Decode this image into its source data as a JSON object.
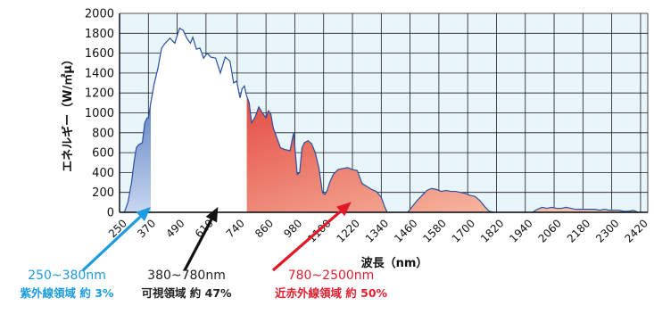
{
  "chart_data": {
    "type": "area",
    "xlabel": "波長（nm）",
    "ylabel": "エネルギー（W/㎡μ）",
    "xlim": [
      250,
      2450
    ],
    "ylim": [
      0,
      2000
    ],
    "x_ticks": [
      250,
      370,
      490,
      610,
      740,
      860,
      980,
      1100,
      1220,
      1340,
      1460,
      1580,
      1700,
      1820,
      1940,
      2060,
      2180,
      2300,
      2420
    ],
    "x_tick_labels": [
      "250",
      "370",
      "490",
      "610",
      "740",
      "860",
      "980",
      "1100",
      "1220",
      "1340",
      "1460",
      "1580",
      "1700",
      "1820",
      "1940",
      "2060",
      "2180",
      "2300",
      "2420"
    ],
    "y_ticks": [
      0,
      200,
      400,
      600,
      800,
      1000,
      1200,
      1400,
      1600,
      1800,
      2000
    ],
    "y_tick_labels": [
      "0",
      "200",
      "400",
      "600",
      "800",
      "1000",
      "1200",
      "1400",
      "1600",
      "1800",
      "2000"
    ],
    "grid": true,
    "series": [
      {
        "x": [
          250,
          270,
          285,
          300,
          310,
          320,
          330,
          345,
          355,
          365,
          370,
          380,
          395,
          410,
          425,
          440,
          460,
          480,
          500,
          515,
          530,
          545,
          555,
          570,
          585,
          600,
          615,
          630,
          650,
          670,
          690,
          710,
          725,
          738,
          745,
          752,
          760,
          770,
          778,
          790,
          800,
          815,
          830,
          845,
          860,
          870,
          880,
          890,
          905,
          920,
          940,
          960,
          975,
          990,
          1000,
          1010,
          1020,
          1035,
          1050,
          1065,
          1080,
          1095,
          1105,
          1115,
          1125,
          1140,
          1160,
          1180,
          1200,
          1220,
          1240,
          1260,
          1280,
          1300,
          1320,
          1340,
          1355,
          1365,
          1375,
          1390,
          1410,
          1430,
          1450,
          1470,
          1490,
          1510,
          1530,
          1550,
          1570,
          1590,
          1610,
          1630,
          1650,
          1670,
          1690,
          1710,
          1730,
          1750,
          1770,
          1790,
          1810,
          1830,
          1850,
          1870,
          1890,
          1910,
          1930,
          1950,
          1970,
          1990,
          2010,
          2030,
          2050,
          2070,
          2090,
          2110,
          2130,
          2150,
          2170,
          2190,
          2210,
          2230,
          2250,
          2270,
          2290,
          2310,
          2330,
          2350,
          2370,
          2390,
          2410,
          2430,
          2450
        ],
        "values": [
          0,
          0,
          100,
          300,
          500,
          650,
          680,
          700,
          900,
          950,
          950,
          1100,
          1300,
          1450,
          1650,
          1700,
          1750,
          1700,
          1850,
          1830,
          1750,
          1700,
          1760,
          1640,
          1650,
          1550,
          1600,
          1560,
          1550,
          1400,
          1560,
          1520,
          1300,
          1320,
          1230,
          1150,
          1240,
          1270,
          1180,
          1100,
          900,
          960,
          1060,
          1000,
          950,
          1020,
          990,
          850,
          750,
          650,
          630,
          620,
          800,
          380,
          400,
          650,
          700,
          720,
          690,
          600,
          450,
          200,
          180,
          220,
          300,
          380,
          430,
          440,
          450,
          430,
          420,
          290,
          260,
          230,
          210,
          150,
          50,
          0,
          0,
          0,
          0,
          0,
          0,
          60,
          120,
          170,
          220,
          240,
          230,
          210,
          220,
          210,
          210,
          200,
          190,
          170,
          160,
          120,
          60,
          10,
          0,
          0,
          0,
          0,
          0,
          0,
          0,
          0,
          0,
          30,
          50,
          40,
          50,
          40,
          40,
          50,
          40,
          30,
          30,
          30,
          30,
          30,
          20,
          30,
          20,
          20,
          20,
          10,
          10,
          20,
          0,
          0,
          0
        ]
      }
    ],
    "regions": [
      {
        "name": "uv",
        "range_label": "250~380nm",
        "desc_label": "紫外線領域 約 3%",
        "x_from": 250,
        "x_to": 380,
        "color_top": "#1f4aa8",
        "color_bottom": "#c7d7f0",
        "caption_color": "#1c9be0",
        "arrow_color": "#1c9be0"
      },
      {
        "name": "visible",
        "range_label": "380~780nm",
        "desc_label": "可視領域 約 47%",
        "x_from": 380,
        "x_to": 780,
        "color_top": "#ffffff",
        "color_bottom": "#ffffff",
        "caption_color": "#222222",
        "arrow_color": "#111111"
      },
      {
        "name": "nir",
        "range_label": "780~2500nm",
        "desc_label": "近赤外線領域 約 50%",
        "x_from": 780,
        "x_to": 2450,
        "color_top": "#d9100f",
        "color_bottom": "#fbd3b8",
        "caption_color": "#e02030",
        "arrow_color": "#e01828"
      }
    ],
    "arrows": [
      {
        "region": "uv",
        "tip_x": 380,
        "tip_y": 0
      },
      {
        "region": "visible",
        "tip_x": 660,
        "tip_y": 0
      },
      {
        "region": "nir",
        "tip_x": 1215,
        "tip_y": 50
      }
    ],
    "colors": {
      "plot_background": "#e8f6fc",
      "grid": "#1a1a1a",
      "outline": "#2a4fa0",
      "axis": "#111111"
    }
  }
}
